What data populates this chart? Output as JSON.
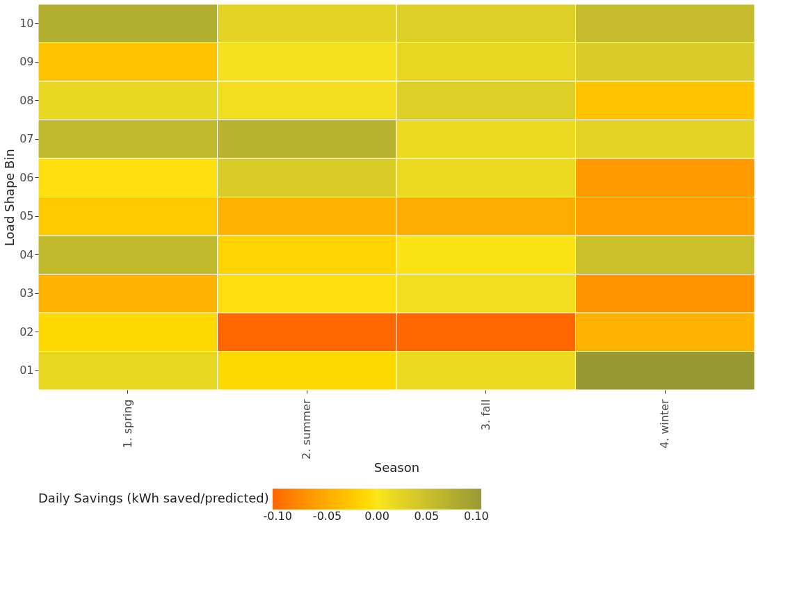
{
  "chart_data": {
    "type": "heatmap",
    "xlabel": "Season",
    "ylabel": "Load Shape Bin",
    "clabel": "Daily Savings (kWh saved/predicted)",
    "categories": [
      "1. spring",
      "2. summer",
      "3. fall",
      "4. winter"
    ],
    "y_categories": [
      "10",
      "09",
      "08",
      "07",
      "06",
      "05",
      "04",
      "03",
      "02",
      "01"
    ],
    "cells": [
      [
        0.075,
        0.025,
        0.03,
        0.055
      ],
      [
        -0.03,
        0.005,
        0.02,
        0.035
      ],
      [
        0.02,
        0.01,
        0.03,
        -0.03
      ],
      [
        0.06,
        0.07,
        0.015,
        0.025
      ],
      [
        -0.005,
        0.035,
        0.015,
        -0.065
      ],
      [
        -0.025,
        -0.045,
        -0.05,
        -0.06
      ],
      [
        0.06,
        -0.015,
        -0.002,
        0.05
      ],
      [
        -0.045,
        -0.005,
        0.01,
        -0.07
      ],
      [
        -0.01,
        -0.105,
        -0.105,
        -0.045
      ],
      [
        0.02,
        -0.01,
        0.015,
        0.105
      ]
    ],
    "clim": [
      -0.105,
      0.105
    ],
    "cticks": [
      {
        "value": -0.1,
        "label": "-0.10"
      },
      {
        "value": -0.05,
        "label": "-0.05"
      },
      {
        "value": 0,
        "label": "0.00"
      },
      {
        "value": 0.05,
        "label": "0.05"
      },
      {
        "value": 0.1,
        "label": "0.10"
      }
    ],
    "colors": [
      "#ff6600",
      "#fce51a",
      "#999933"
    ]
  }
}
